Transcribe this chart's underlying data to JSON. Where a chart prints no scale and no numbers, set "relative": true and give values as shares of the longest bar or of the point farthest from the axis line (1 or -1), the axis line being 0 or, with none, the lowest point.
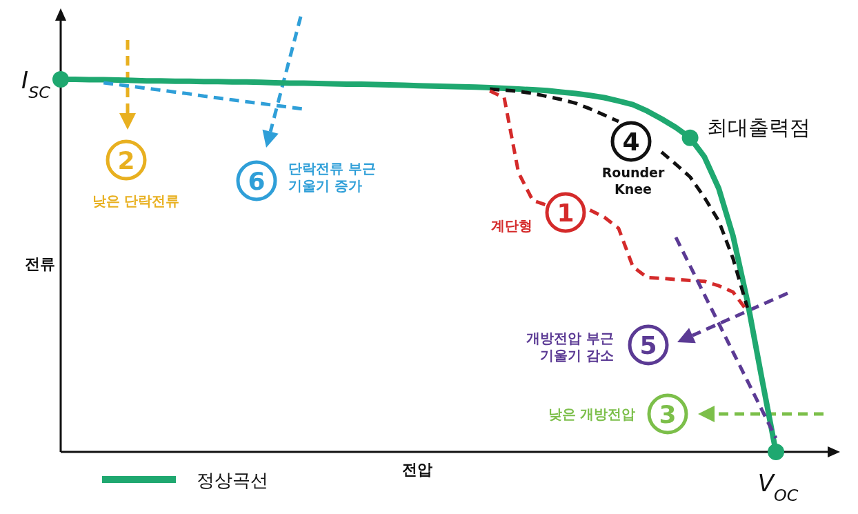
{
  "chart_data": {
    "type": "line",
    "relative": true,
    "xlabel": "전압",
    "ylabel": "전류",
    "legend": "bottom left",
    "marker": "none",
    "categories": [
      null,
      null,
      null,
      null,
      null,
      null,
      null,
      null,
      null,
      null,
      null,
      null,
      null,
      null,
      null,
      null,
      null,
      null,
      null,
      null,
      null,
      null,
      null,
      null,
      null,
      null,
      null,
      null,
      null,
      null,
      null,
      null,
      null,
      null,
      null,
      null,
      null,
      null,
      null,
      null,
      null,
      null,
      null,
      null,
      null,
      null,
      null,
      null,
      null,
      null,
      null,
      null,
      null,
      null,
      null
    ],
    "series": [
      {
        "name": "정상곡선",
        "color": "#1fa870",
        "line_style": "solid",
        "values": [
          1,
          1,
          0.999,
          0.999,
          0.998,
          0.997,
          0.996,
          0.996,
          0.995,
          0.995,
          0.994,
          0.994,
          0.993,
          0.993,
          0.992,
          0.991,
          0.99,
          0.99,
          0.989,
          0.988,
          0.987,
          0.987,
          0.986,
          0.985,
          0.984,
          0.983,
          0.982,
          0.981,
          0.98,
          0.979,
          0.978,
          0.976,
          0.974,
          0.972,
          0.97,
          0.966,
          0.962,
          0.957,
          0.951,
          0.942,
          0.932,
          0.915,
          0.894,
          0.871,
          0.843,
          0.792,
          0.707,
          0.58,
          0.405,
          0.2,
          0,
          null,
          null,
          null,
          null
        ]
      },
      {
        "color": "#111111",
        "line_style": "dashed",
        "values": [
          null,
          null,
          null,
          null,
          null,
          null,
          null,
          null,
          null,
          null,
          null,
          null,
          null,
          null,
          null,
          null,
          null,
          null,
          null,
          null,
          null,
          null,
          null,
          null,
          null,
          null,
          null,
          null,
          null,
          null,
          0.974,
          0.971,
          0.968,
          0.962,
          0.954,
          0.946,
          0.936,
          0.921,
          0.904,
          0.887,
          null,
          null,
          0.805,
          0.772,
          0.738,
          0.683,
          0.62,
          0.519,
          0.387,
          null,
          null,
          null,
          null,
          null,
          null
        ]
      },
      {
        "color": "#d42a2a",
        "line_style": "dashed",
        "values": [
          null,
          null,
          null,
          null,
          null,
          null,
          null,
          null,
          null,
          null,
          null,
          null,
          null,
          null,
          null,
          null,
          null,
          null,
          null,
          null,
          null,
          null,
          null,
          null,
          null,
          null,
          null,
          null,
          null,
          null,
          0.969,
          0.951,
          0.75,
          0.675,
          0.662,
          null,
          null,
          0.649,
          0.63,
          0.6,
          0.497,
          0.468,
          0.466,
          0.463,
          0.46,
          0.458,
          0.446,
          0.429,
          0.378,
          null,
          null,
          null,
          null,
          null,
          null
        ]
      },
      {
        "color": "#2f9fd8",
        "line_style": "dashed",
        "values": [
          null,
          null,
          null,
          0.991,
          0.986,
          0.981,
          0.976,
          0.971,
          0.966,
          0.961,
          0.955,
          0.95,
          0.945,
          0.94,
          0.935,
          0.93,
          0.925,
          0.92,
          null,
          null,
          null,
          null,
          null,
          null,
          null,
          null,
          null,
          null,
          null,
          null,
          null,
          null,
          null,
          null,
          null,
          null,
          null,
          null,
          null,
          null,
          null,
          null,
          null,
          null,
          null,
          null,
          null,
          null,
          null,
          null,
          null,
          null,
          null,
          null,
          null
        ]
      },
      {
        "color": "#5b3a94",
        "line_style": "dashed",
        "values": [
          null,
          null,
          null,
          null,
          null,
          null,
          null,
          null,
          null,
          null,
          null,
          null,
          null,
          null,
          null,
          null,
          null,
          null,
          null,
          null,
          null,
          null,
          null,
          null,
          null,
          null,
          null,
          null,
          null,
          null,
          null,
          null,
          null,
          null,
          null,
          null,
          null,
          null,
          null,
          null,
          null,
          null,
          null,
          0.576,
          0.499,
          0.422,
          0.345,
          0.268,
          0.191,
          0.114,
          0.037,
          null,
          null,
          null,
          null
        ]
      }
    ],
    "annotations": [
      "I$_{SC}$",
      "V$_{OC}$",
      "최대출력점",
      "1",
      "계단형",
      "2",
      "낮은 단락전류",
      "3",
      "낮은 개방전압",
      "4",
      "Rounder Knee",
      "5",
      "개방전압 부근 기울기 감소",
      "6",
      "단락전류 부근 기울기 증가"
    ]
  }
}
